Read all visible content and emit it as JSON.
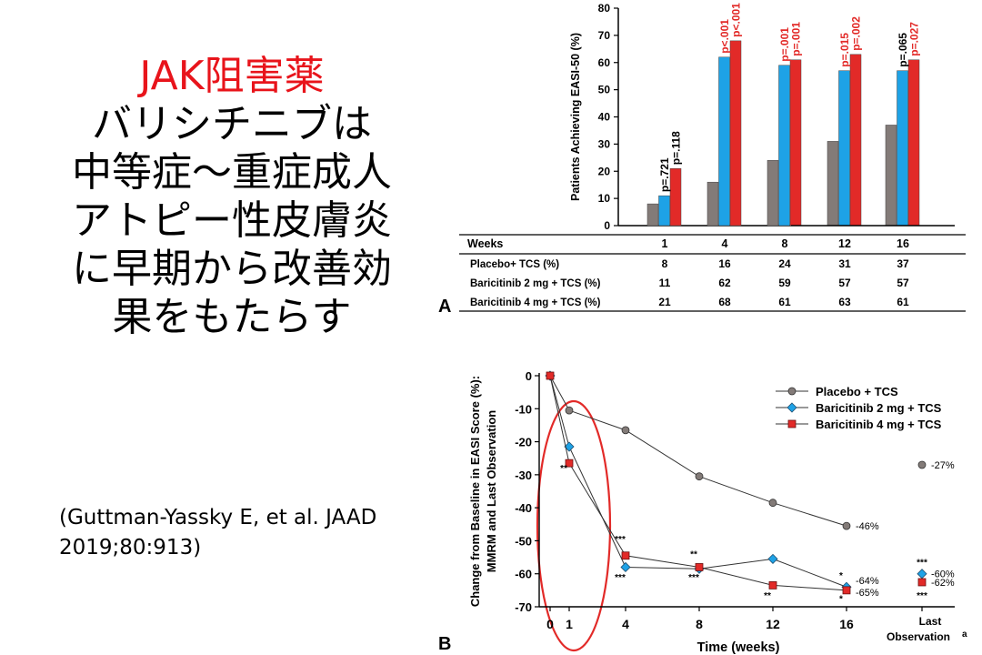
{
  "slide": {
    "title_red": "JAK阻害薬",
    "title_lines": [
      "バリシチニブは",
      "中等症～重症成人",
      "アトピー性皮膚炎",
      "に早期から改善効",
      "果をもたらす"
    ],
    "citation_line1": "(Guttman-Yassky E, et al. JAAD",
    "citation_line2": "2019;80:913)",
    "label_a": "A",
    "label_b": "B"
  },
  "colors": {
    "placebo": "#837b78",
    "bari2": "#1ea2e6",
    "bari4": "#e22a28",
    "pvalue_sig": "#e22a28",
    "pvalue_ns": "#000000"
  },
  "chart_data": [
    {
      "type": "bar",
      "ylabel": "Patients Achieving EASI-50 (%)",
      "ylim": [
        0,
        80
      ],
      "yticks": [
        0,
        10,
        20,
        30,
        40,
        50,
        60,
        70,
        80
      ],
      "categories": [
        "1",
        "4",
        "8",
        "12",
        "16"
      ],
      "series": [
        {
          "name": "Placebo+ TCS (%)",
          "values": [
            8,
            16,
            24,
            31,
            37
          ]
        },
        {
          "name": "Baricitinib 2 mg + TCS (%)",
          "values": [
            11,
            62,
            59,
            57,
            57
          ]
        },
        {
          "name": "Baricitinib 4 mg + TCS (%)",
          "values": [
            21,
            68,
            61,
            63,
            61
          ]
        }
      ],
      "pvalues": {
        "bari2": [
          "p=.721",
          "p<.001",
          "p=.001",
          "p=.015",
          "p=.065"
        ],
        "bari4": [
          "p=.118",
          "p<.001",
          "p=.001",
          "p=.002",
          "p=.027"
        ],
        "bari2_significant": [
          false,
          true,
          true,
          true,
          false
        ],
        "bari4_significant": [
          false,
          true,
          true,
          true,
          true
        ]
      },
      "table": {
        "header": "Weeks",
        "rows": [
          {
            "label": "Placebo+ TCS (%)",
            "values": [
              "8",
              "16",
              "24",
              "31",
              "37"
            ]
          },
          {
            "label": "Baricitinib 2 mg + TCS (%)",
            "values": [
              "11",
              "62",
              "59",
              "57",
              "57"
            ]
          },
          {
            "label": "Baricitinib 4 mg + TCS (%)",
            "values": [
              "21",
              "68",
              "61",
              "63",
              "61"
            ]
          }
        ]
      }
    },
    {
      "type": "line",
      "xlabel": "Time (weeks)",
      "ylabel_line1": "Change from Baseline in EASI Score (%):",
      "ylabel_line2": "MMRM and Last Observation",
      "ylim": [
        -70,
        0
      ],
      "yticks": [
        0,
        -10,
        -20,
        -30,
        -40,
        -50,
        -60,
        -70
      ],
      "x": [
        0,
        1,
        4,
        8,
        12,
        16
      ],
      "xticks": [
        "0",
        "1",
        "4",
        "8",
        "12",
        "16"
      ],
      "last_obs_label": "Last",
      "last_obs_label2": "Observation",
      "last_obs_sup": "a",
      "legend_position": "top-right",
      "series": [
        {
          "name": "Placebo + TCS",
          "values": [
            0,
            -10.5,
            -16.5,
            -30.5,
            -38.5,
            -45.5
          ],
          "end_label": "-46%",
          "last_obs": -27,
          "last_obs_label": "-27%"
        },
        {
          "name": "Baricitinib 2 mg + TCS",
          "values": [
            0,
            -21.5,
            -58,
            -58.5,
            -55.5,
            -64
          ],
          "end_label": "-64%",
          "last_obs": -60,
          "last_obs_label": "-60%"
        },
        {
          "name": "Baricitinib 4 mg + TCS",
          "values": [
            0,
            -26.5,
            -54.5,
            -58,
            -63.5,
            -65
          ],
          "end_label": "-65%",
          "last_obs": -62,
          "last_obs_label": "-62%"
        }
      ],
      "significance": [
        {
          "x": 1,
          "y": -29,
          "text": "**"
        },
        {
          "x": 4,
          "y": -50.5,
          "text": "***"
        },
        {
          "x": 4,
          "y": -62,
          "text": "***"
        },
        {
          "x": 8,
          "y": -55,
          "text": "**"
        },
        {
          "x": 8,
          "y": -62,
          "text": "***"
        },
        {
          "x": 12,
          "y": -67.5,
          "text": "**"
        },
        {
          "x": 16,
          "y": -61.5,
          "text": "*"
        },
        {
          "x": 16,
          "y": -68.5,
          "text": "*"
        },
        {
          "x": "last",
          "y": -57.5,
          "text": "***"
        },
        {
          "x": "last",
          "y": -67.5,
          "text": "***"
        }
      ],
      "highlight": "red-ellipse-weeks-0-1"
    }
  ]
}
